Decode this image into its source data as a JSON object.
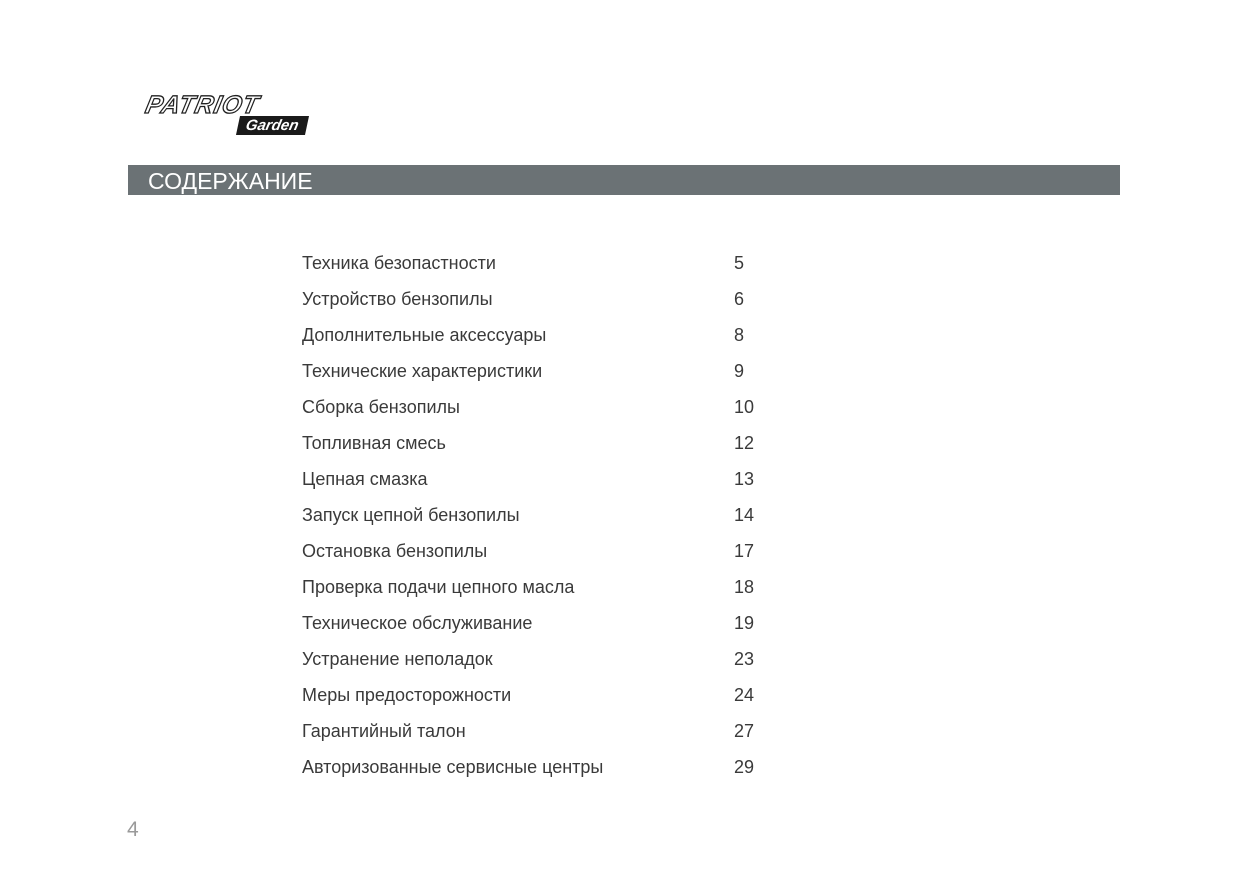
{
  "logo": {
    "brand": "PATRIOT",
    "sub": "Garden"
  },
  "header": {
    "title": "СОДЕРЖАНИЕ"
  },
  "toc": [
    {
      "title": "Техника безопастности",
      "page": "5"
    },
    {
      "title": "Устройство бензопилы",
      "page": "6"
    },
    {
      "title": "Дополнительные аксессуары",
      "page": "8"
    },
    {
      "title": "Технические характеристики",
      "page": "9"
    },
    {
      "title": "Сборка бензопилы",
      "page": "10"
    },
    {
      "title": "Топливная смесь",
      "page": "12"
    },
    {
      "title": "Цепная смазка",
      "page": "13"
    },
    {
      "title": "Запуск цепной бензопилы",
      "page": "14"
    },
    {
      "title": "Остановка бензопилы",
      "page": "17"
    },
    {
      "title": "Проверка подачи цепного масла",
      "page": "18"
    },
    {
      "title": "Техническое обслуживание",
      "page": "19"
    },
    {
      "title": "Устранение неполадок",
      "page": "23"
    },
    {
      "title": "Меры предосторожности",
      "page": "24"
    },
    {
      "title": "Гарантийный талон",
      "page": "27"
    },
    {
      "title": "Авторизованные сервисные центры",
      "page": "29"
    }
  ],
  "footer": {
    "page_number": "4"
  }
}
